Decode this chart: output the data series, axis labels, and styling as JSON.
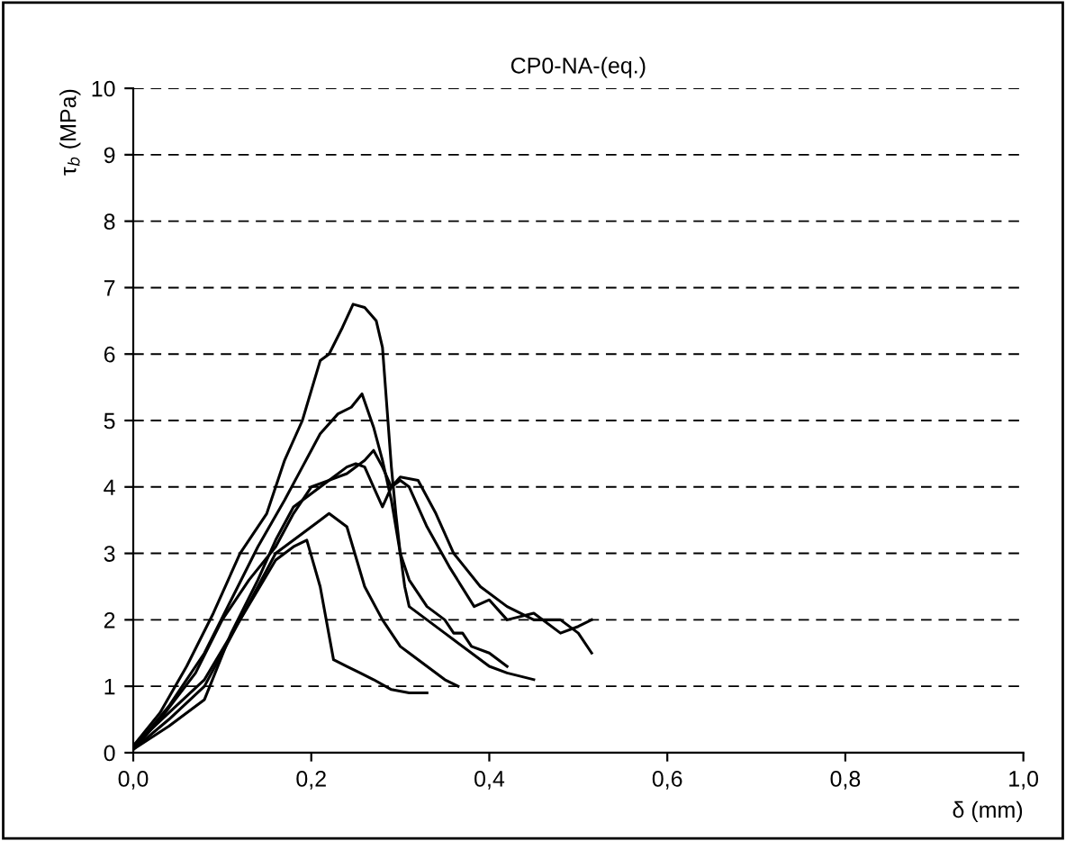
{
  "chart_data": {
    "type": "line",
    "title": "CP0-NA-(eq.)",
    "xlabel": "δ (mm)",
    "ylabel": "τ$_{b}$ (MPa)",
    "xlim": [
      0,
      1
    ],
    "ylim": [
      0,
      10
    ],
    "xticks": [
      {
        "value": 0,
        "label": "0,0"
      },
      {
        "value": 0.2,
        "label": "0,2"
      },
      {
        "value": 0.4,
        "label": "0,4"
      },
      {
        "value": 0.6,
        "label": "0,6"
      },
      {
        "value": 0.8,
        "label": "0,8"
      },
      {
        "value": 1,
        "label": "1,0"
      }
    ],
    "yticks": [
      0,
      1,
      2,
      3,
      4,
      5,
      6,
      7,
      8,
      9,
      10
    ],
    "grid": "y",
    "line_style": "solid",
    "marker": "none",
    "series": [
      {
        "color": "#000000",
        "x": [
          0,
          0.03,
          0.06,
          0.09,
          0.12,
          0.15,
          0.17,
          0.19,
          0.21,
          0.22,
          0.235,
          0.247,
          0.26,
          0.273,
          0.28,
          0.285,
          0.29,
          0.295,
          0.3,
          0.305,
          0.31,
          0.33,
          0.35,
          0.36,
          0.38,
          0.4,
          0.42,
          0.45
        ],
        "values": [
          0.1,
          0.6,
          1.3,
          2.1,
          3.0,
          3.6,
          4.4,
          5.0,
          5.9,
          6.0,
          6.4,
          6.75,
          6.7,
          6.5,
          6.1,
          5.2,
          4.3,
          3.6,
          3.0,
          2.5,
          2.2,
          2.0,
          1.8,
          1.7,
          1.5,
          1.3,
          1.2,
          1.1
        ]
      },
      {
        "color": "#000000",
        "x": [
          0,
          0.04,
          0.08,
          0.11,
          0.14,
          0.17,
          0.19,
          0.21,
          0.23,
          0.245,
          0.257,
          0.27,
          0.28,
          0.29,
          0.3,
          0.31,
          0.32,
          0.33,
          0.35,
          0.36,
          0.37,
          0.38,
          0.4,
          0.42
        ],
        "values": [
          0.05,
          0.7,
          1.5,
          2.3,
          3.1,
          3.8,
          4.3,
          4.8,
          5.1,
          5.2,
          5.4,
          4.9,
          4.4,
          3.8,
          3.0,
          2.6,
          2.4,
          2.2,
          2.0,
          1.8,
          1.8,
          1.6,
          1.5,
          1.3
        ]
      },
      {
        "color": "#000000",
        "x": [
          0,
          0.03,
          0.07,
          0.1,
          0.13,
          0.16,
          0.18,
          0.2,
          0.22,
          0.24,
          0.26,
          0.27,
          0.28,
          0.29,
          0.3,
          0.31,
          0.33,
          0.355,
          0.383,
          0.4,
          0.42,
          0.45,
          0.48,
          0.5,
          0.515
        ],
        "values": [
          0.05,
          0.5,
          1.2,
          2.0,
          2.6,
          3.1,
          3.6,
          4.0,
          4.1,
          4.2,
          4.4,
          4.55,
          4.3,
          4.0,
          4.1,
          4.0,
          3.4,
          2.8,
          2.2,
          2.3,
          2.0,
          2.1,
          1.8,
          1.9,
          2.0
        ]
      },
      {
        "color": "#000000",
        "x": [
          0,
          0.04,
          0.08,
          0.11,
          0.14,
          0.16,
          0.18,
          0.2,
          0.22,
          0.24,
          0.25,
          0.26,
          0.27,
          0.28,
          0.29,
          0.3,
          0.32,
          0.34,
          0.36,
          0.39,
          0.42,
          0.45,
          0.48,
          0.5,
          0.515
        ],
        "values": [
          0.05,
          0.4,
          0.8,
          1.8,
          2.6,
          3.2,
          3.7,
          3.9,
          4.1,
          4.3,
          4.35,
          4.3,
          4.0,
          3.7,
          4.0,
          4.15,
          4.1,
          3.6,
          3.0,
          2.5,
          2.2,
          2.0,
          2.0,
          1.8,
          1.5
        ]
      },
      {
        "color": "#000000",
        "x": [
          0,
          0.04,
          0.08,
          0.12,
          0.16,
          0.19,
          0.21,
          0.22,
          0.24,
          0.26,
          0.28,
          0.3,
          0.31,
          0.33,
          0.35,
          0.365
        ],
        "values": [
          0.05,
          0.5,
          1.0,
          2.0,
          3.0,
          3.3,
          3.5,
          3.6,
          3.4,
          2.5,
          2.0,
          1.6,
          1.5,
          1.3,
          1.1,
          1.0
        ]
      },
      {
        "color": "#000000",
        "x": [
          0,
          0.04,
          0.08,
          0.12,
          0.16,
          0.18,
          0.195,
          0.21,
          0.225,
          0.24,
          0.255,
          0.27,
          0.29,
          0.31,
          0.33
        ],
        "values": [
          0.1,
          0.6,
          1.1,
          2.0,
          2.9,
          3.1,
          3.2,
          2.5,
          1.4,
          1.3,
          1.2,
          1.1,
          0.95,
          0.9,
          0.9
        ]
      }
    ]
  }
}
